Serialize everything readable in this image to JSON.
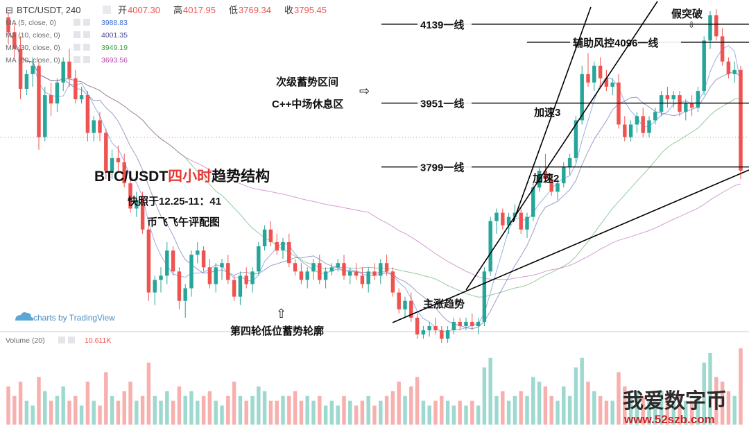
{
  "header": {
    "symbol": "BTC/USDT, 240",
    "open_label": "开",
    "open": "4007.30",
    "high_label": "高",
    "high": "4017.95",
    "low_label": "低",
    "low": "3769.34",
    "close_label": "收",
    "close": "3795.45"
  },
  "indicators": [
    {
      "label": "MA (5, close, 0)",
      "value": "3988.83",
      "color": "#3f6fd6"
    },
    {
      "label": "MA (10, close, 0)",
      "value": "4001.35",
      "color": "#4a4a9a"
    },
    {
      "label": "MA (30, close, 0)",
      "value": "3949.19",
      "color": "#3aa34a"
    },
    {
      "label": "MA (60, close, 0)",
      "value": "3693.56",
      "color": "#b04aa8"
    }
  ],
  "volume_indicator": {
    "label": "Volume (20)",
    "value": "10.611K"
  },
  "branding": {
    "tradingview": "charts by TradingView"
  },
  "titles": {
    "main_black_1": "BTC/USDT",
    "main_red": "四小时",
    "main_black_2": "趋势结构",
    "snapshot": "快照于12.25-11：41",
    "author": "币飞飞午评配图"
  },
  "annotations": {
    "fake_break": "假突破",
    "line_4139": "4139一线",
    "line_4096": "辅助风控4096一线",
    "line_3951": "3951一线",
    "line_3799": "3799一线",
    "secondary_zone": "次级蓄势区间",
    "midfield_rest": "C++中场休息区",
    "accel3": "加速3",
    "accel2": "加速2",
    "main_trend": "主涨趋势",
    "fourth_round": "第四轮低位蓄势轮廓"
  },
  "watermark": {
    "cn": "我爱数字币",
    "url": "www.52szb.com"
  },
  "colors": {
    "up": "#26a69a",
    "down": "#ef5350",
    "vol_up": "#9ed9cf",
    "vol_down": "#f7b0ae"
  },
  "chart_data": {
    "type": "candlestick",
    "ylim": [
      3420,
      4180
    ],
    "levels": [
      {
        "price": 4139,
        "label": "4139一线"
      },
      {
        "price": 4096,
        "label": "辅助风控4096一线"
      },
      {
        "price": 3951,
        "label": "3951一线"
      },
      {
        "price": 3799,
        "label": "3799一线"
      }
    ],
    "candles": [
      [
        4155,
        4165,
        4090,
        4120
      ],
      [
        4120,
        4140,
        4060,
        4080
      ],
      [
        4080,
        4110,
        3960,
        3985
      ],
      [
        3985,
        4030,
        3970,
        4020
      ],
      [
        4020,
        4060,
        3990,
        4040
      ],
      [
        4040,
        4050,
        3840,
        3870
      ],
      [
        3870,
        3990,
        3860,
        3970
      ],
      [
        3970,
        4000,
        3920,
        3950
      ],
      [
        3950,
        4010,
        3930,
        4000
      ],
      [
        4000,
        4060,
        3980,
        4050
      ],
      [
        4050,
        4080,
        3990,
        4010
      ],
      [
        4010,
        4030,
        3950,
        3960
      ],
      [
        3960,
        3990,
        3950,
        3970
      ],
      [
        3970,
        3980,
        3860,
        3880
      ],
      [
        3880,
        3920,
        3860,
        3910
      ],
      [
        3910,
        3930,
        3860,
        3880
      ],
      [
        3880,
        3890,
        3770,
        3790
      ],
      [
        3790,
        3840,
        3770,
        3820
      ],
      [
        3820,
        3850,
        3790,
        3810
      ],
      [
        3810,
        3830,
        3750,
        3760
      ],
      [
        3760,
        3780,
        3690,
        3700
      ],
      [
        3700,
        3740,
        3680,
        3720
      ],
      [
        3720,
        3740,
        3640,
        3650
      ],
      [
        3650,
        3670,
        3480,
        3500
      ],
      [
        3500,
        3540,
        3470,
        3530
      ],
      [
        3530,
        3560,
        3500,
        3540
      ],
      [
        3540,
        3620,
        3520,
        3600
      ],
      [
        3600,
        3610,
        3540,
        3550
      ],
      [
        3550,
        3560,
        3460,
        3480
      ],
      [
        3480,
        3520,
        3440,
        3510
      ],
      [
        3510,
        3600,
        3490,
        3590
      ],
      [
        3590,
        3620,
        3570,
        3600
      ],
      [
        3600,
        3610,
        3550,
        3560
      ],
      [
        3560,
        3580,
        3510,
        3520
      ],
      [
        3520,
        3570,
        3500,
        3560
      ],
      [
        3560,
        3580,
        3530,
        3570
      ],
      [
        3570,
        3590,
        3520,
        3530
      ],
      [
        3530,
        3540,
        3480,
        3490
      ],
      [
        3490,
        3550,
        3470,
        3540
      ],
      [
        3540,
        3560,
        3510,
        3520
      ],
      [
        3520,
        3560,
        3500,
        3550
      ],
      [
        3550,
        3620,
        3540,
        3610
      ],
      [
        3610,
        3660,
        3600,
        3650
      ],
      [
        3650,
        3670,
        3610,
        3620
      ],
      [
        3620,
        3640,
        3590,
        3600
      ],
      [
        3600,
        3630,
        3580,
        3620
      ],
      [
        3620,
        3640,
        3560,
        3570
      ],
      [
        3570,
        3580,
        3540,
        3550
      ],
      [
        3550,
        3570,
        3520,
        3530
      ],
      [
        3530,
        3560,
        3510,
        3550
      ],
      [
        3550,
        3580,
        3530,
        3570
      ],
      [
        3570,
        3590,
        3520,
        3530
      ],
      [
        3530,
        3560,
        3510,
        3550
      ],
      [
        3550,
        3570,
        3540,
        3560
      ],
      [
        3560,
        3580,
        3550,
        3570
      ],
      [
        3570,
        3590,
        3530,
        3540
      ],
      [
        3540,
        3560,
        3520,
        3550
      ],
      [
        3550,
        3570,
        3530,
        3540
      ],
      [
        3540,
        3560,
        3510,
        3520
      ],
      [
        3520,
        3560,
        3500,
        3550
      ],
      [
        3550,
        3570,
        3530,
        3540
      ],
      [
        3540,
        3580,
        3520,
        3570
      ],
      [
        3570,
        3590,
        3540,
        3550
      ],
      [
        3550,
        3560,
        3490,
        3500
      ],
      [
        3500,
        3510,
        3450,
        3460
      ],
      [
        3460,
        3490,
        3440,
        3480
      ],
      [
        3480,
        3500,
        3430,
        3440
      ],
      [
        3440,
        3450,
        3390,
        3400
      ],
      [
        3400,
        3420,
        3390,
        3410
      ],
      [
        3410,
        3430,
        3395,
        3420
      ],
      [
        3420,
        3440,
        3400,
        3410
      ],
      [
        3410,
        3420,
        3380,
        3390
      ],
      [
        3390,
        3420,
        3380,
        3410
      ],
      [
        3410,
        3440,
        3400,
        3430
      ],
      [
        3430,
        3440,
        3410,
        3420
      ],
      [
        3420,
        3440,
        3410,
        3430
      ],
      [
        3430,
        3450,
        3410,
        3420
      ],
      [
        3420,
        3440,
        3400,
        3430
      ],
      [
        3430,
        3560,
        3420,
        3550
      ],
      [
        3550,
        3680,
        3540,
        3670
      ],
      [
        3670,
        3700,
        3640,
        3690
      ],
      [
        3690,
        3700,
        3650,
        3660
      ],
      [
        3660,
        3690,
        3640,
        3680
      ],
      [
        3680,
        3710,
        3670,
        3690
      ],
      [
        3690,
        3700,
        3640,
        3650
      ],
      [
        3650,
        3690,
        3630,
        3680
      ],
      [
        3680,
        3760,
        3670,
        3750
      ],
      [
        3750,
        3800,
        3740,
        3790
      ],
      [
        3790,
        3830,
        3760,
        3770
      ],
      [
        3770,
        3780,
        3730,
        3740
      ],
      [
        3740,
        3770,
        3720,
        3760
      ],
      [
        3760,
        3810,
        3750,
        3800
      ],
      [
        3800,
        3830,
        3780,
        3820
      ],
      [
        3820,
        3920,
        3810,
        3910
      ],
      [
        3910,
        4040,
        3900,
        4020
      ],
      [
        4020,
        4070,
        3990,
        4000
      ],
      [
        4000,
        4050,
        3980,
        4040
      ],
      [
        4040,
        4060,
        3990,
        4010
      ],
      [
        4010,
        4030,
        3980,
        3990
      ],
      [
        3990,
        4010,
        3970,
        4000
      ],
      [
        4000,
        4020,
        3890,
        3900
      ],
      [
        3900,
        3920,
        3860,
        3870
      ],
      [
        3870,
        3910,
        3860,
        3900
      ],
      [
        3900,
        3930,
        3880,
        3920
      ],
      [
        3920,
        3940,
        3870,
        3880
      ],
      [
        3880,
        3920,
        3870,
        3910
      ],
      [
        3910,
        3940,
        3900,
        3930
      ],
      [
        3930,
        3980,
        3920,
        3970
      ],
      [
        3970,
        3990,
        3940,
        3960
      ],
      [
        3960,
        3980,
        3940,
        3970
      ],
      [
        3970,
        3980,
        3920,
        3930
      ],
      [
        3930,
        3960,
        3910,
        3950
      ],
      [
        3950,
        3970,
        3920,
        3940
      ],
      [
        3940,
        3990,
        3930,
        3980
      ],
      [
        3980,
        4110,
        3970,
        4100
      ],
      [
        4100,
        4170,
        4080,
        4160
      ],
      [
        4160,
        4175,
        4100,
        4110
      ],
      [
        4110,
        4130,
        4040,
        4050
      ],
      [
        4050,
        4060,
        4010,
        4020
      ],
      [
        4020,
        4050,
        4000,
        4030
      ],
      [
        4030,
        4040,
        3770,
        3790
      ]
    ],
    "volume": [
      8,
      6,
      9,
      5,
      4,
      10,
      7,
      5,
      6,
      8,
      5,
      6,
      4,
      9,
      5,
      4,
      11,
      6,
      5,
      7,
      9,
      5,
      6,
      13,
      6,
      5,
      7,
      5,
      8,
      6,
      7,
      5,
      6,
      7,
      5,
      4,
      6,
      9,
      6,
      5,
      6,
      8,
      7,
      5,
      5,
      6,
      6,
      7,
      5,
      6,
      5,
      6,
      4,
      5,
      4,
      6,
      5,
      4,
      5,
      6,
      4,
      5,
      6,
      7,
      9,
      6,
      8,
      10,
      5,
      4,
      5,
      6,
      5,
      4,
      5,
      4,
      5,
      4,
      12,
      14,
      6,
      7,
      5,
      6,
      7,
      6,
      10,
      9,
      8,
      6,
      5,
      8,
      6,
      12,
      14,
      9,
      7,
      6,
      5,
      5,
      11,
      8,
      6,
      7,
      6,
      5,
      5,
      7,
      6,
      5,
      6,
      5,
      5,
      6,
      13,
      15,
      10,
      9,
      7,
      6,
      16
    ]
  }
}
